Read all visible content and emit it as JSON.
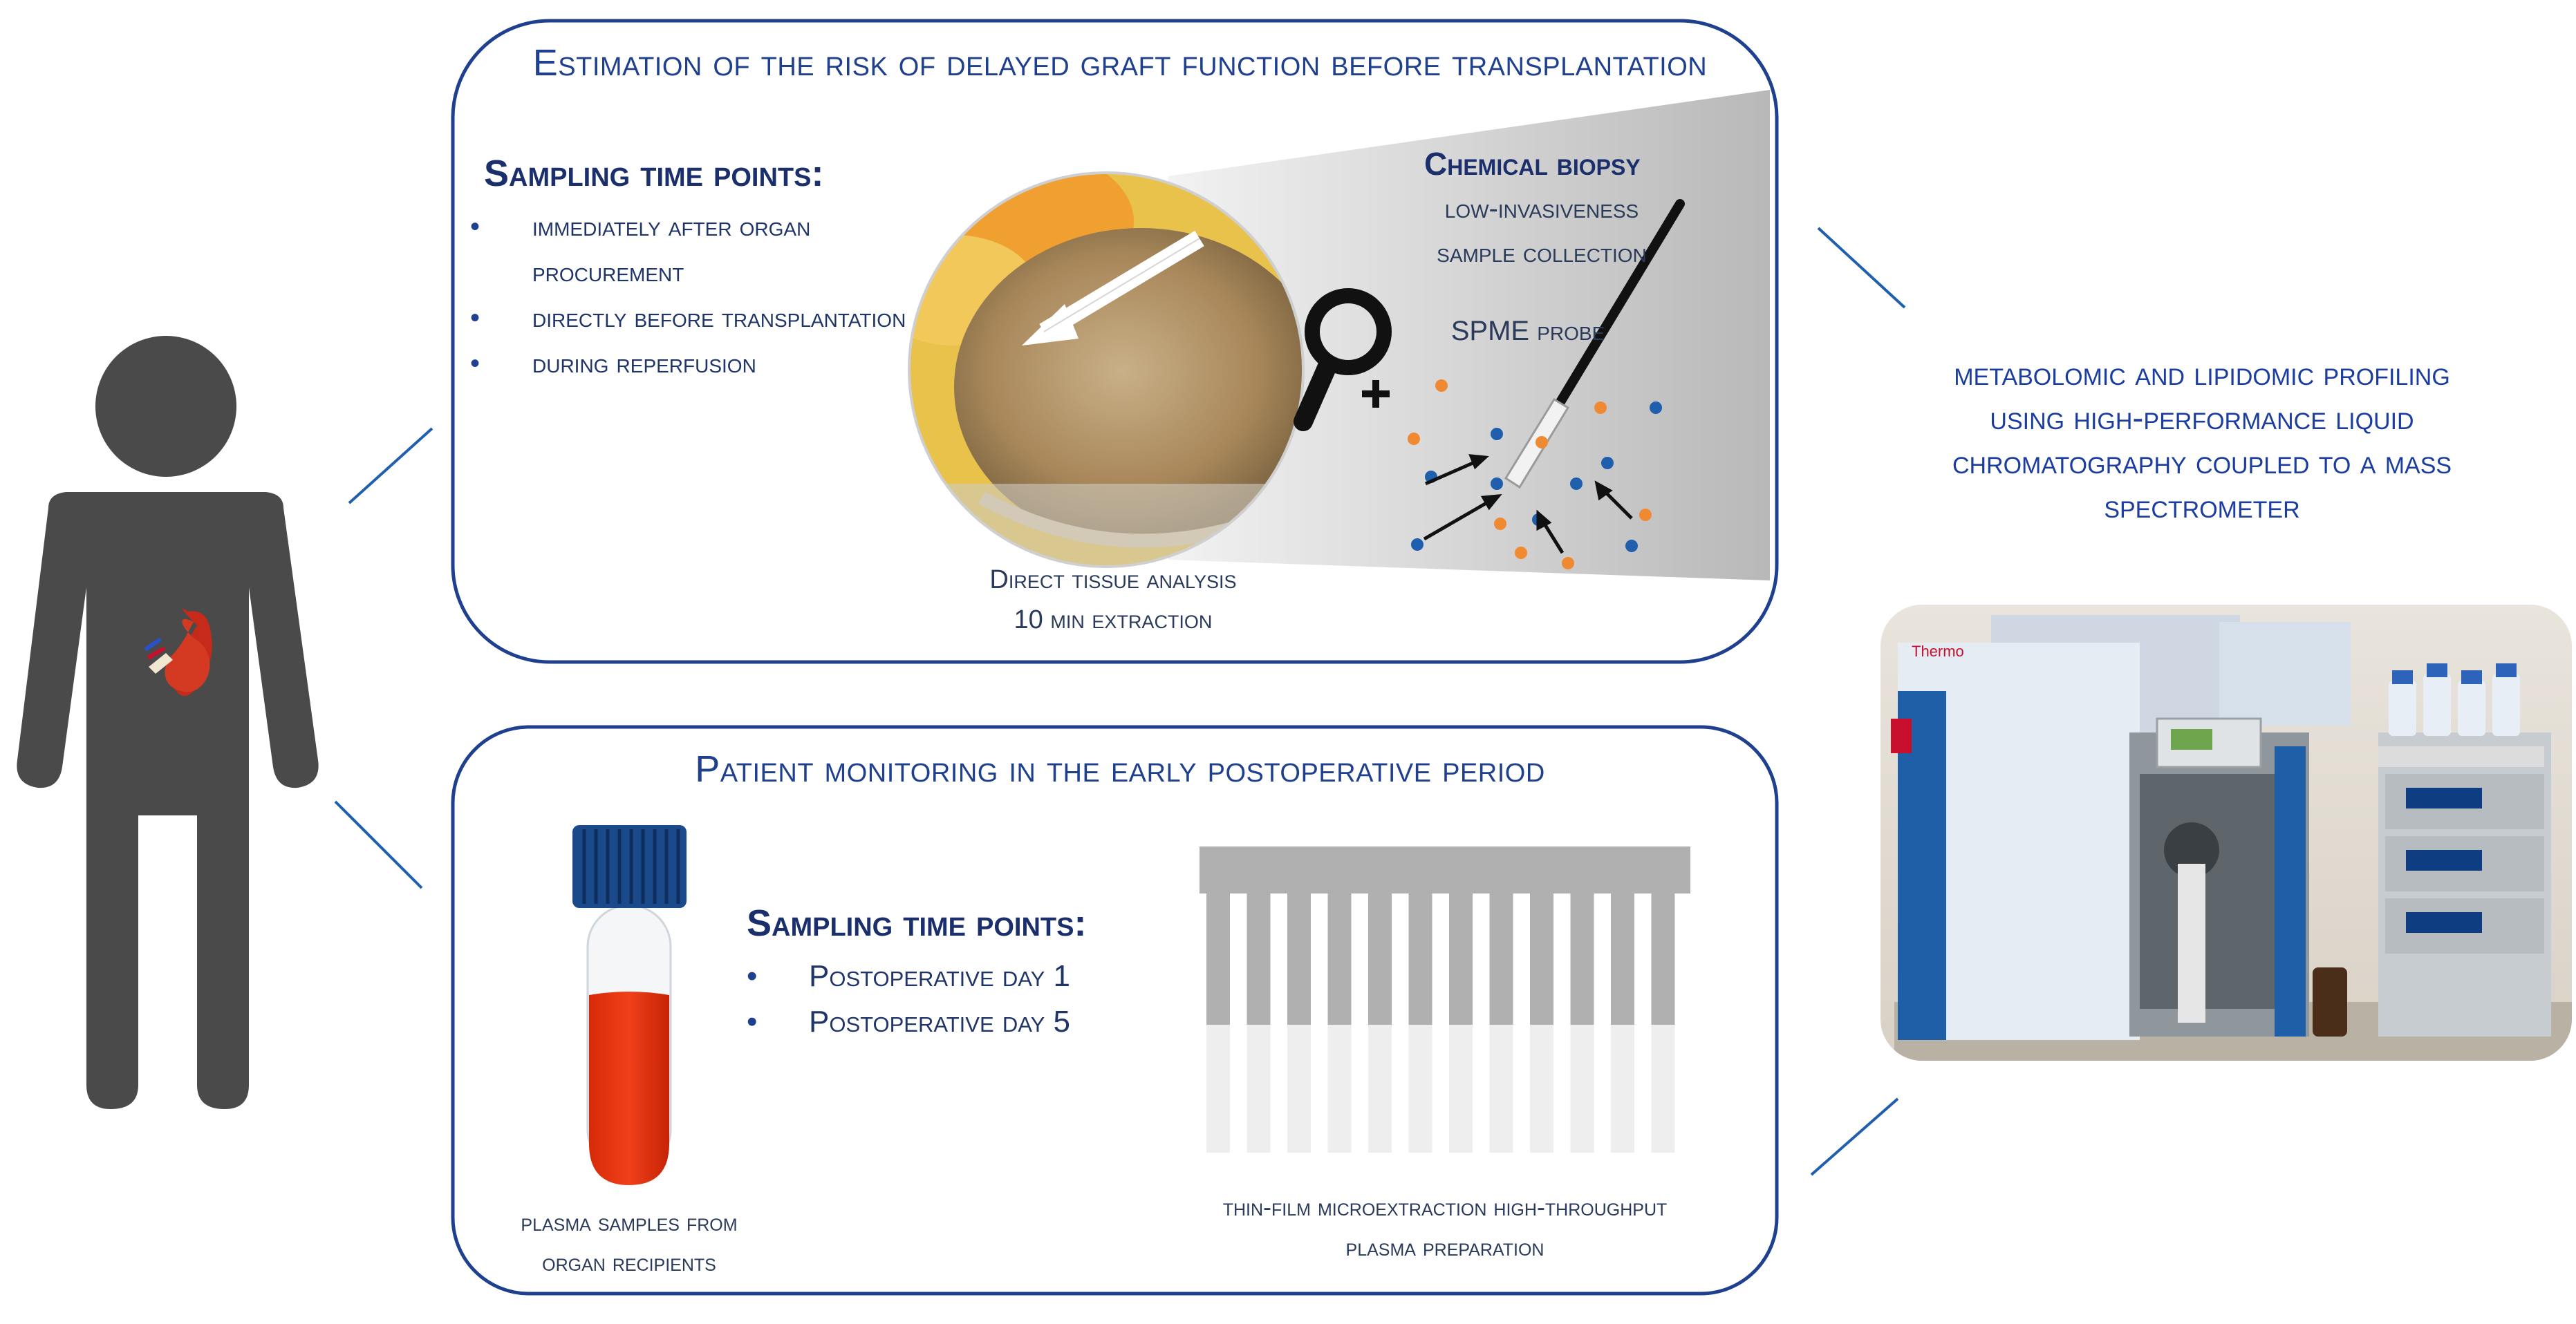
{
  "top_panel": {
    "title": "Estimation of the risk of delayed graft function before transplantation",
    "sampling_heading": "Sampling time points:",
    "sampling_items": [
      "immediately after organ procurement",
      "directly before transplantation",
      "during reperfusion"
    ],
    "chemical_biopsy_heading": "Chemical biopsy",
    "chemical_biopsy_line1": "low-invasiveness",
    "chemical_biopsy_line2": "sample collection",
    "probe_label": "SPME probe",
    "caption_line1": "Direct tissue analysis",
    "caption_line2": "10 min extraction"
  },
  "bottom_panel": {
    "title": "Patient monitoring in the early postoperative period",
    "sampling_heading": "Sampling time points:",
    "sampling_items": [
      "Postoperative day 1",
      "Postoperative day 5"
    ],
    "tube_caption_line1": "plasma samples from",
    "tube_caption_line2": "organ recipients",
    "tfme_caption_line1": "thin-film microextraction high-throughput",
    "tfme_caption_line2": "plasma preparation"
  },
  "right_panel": {
    "text_lines": [
      "metabolomic and lipidomic profiling",
      "using high-performance liquid",
      "chromatography coupled to a mass",
      "spectrometer"
    ],
    "instrument_brand": "Thermo"
  },
  "icons": {
    "person": "person-silhouette-icon",
    "kidney": "kidney-icon",
    "magnifier": "magnifier-plus-icon",
    "probe": "spme-probe-icon",
    "tube": "blood-tube-icon",
    "tfme": "thin-film-blade-array-icon",
    "instrument": "lc-ms-instrument-image"
  },
  "colors": {
    "frame": "#1f3f8f",
    "title_blue": "#1b3da0",
    "silhouette": "#4a4a4a",
    "blood": "#e8320f",
    "cap": "#1b4a8a",
    "analyte_blue": "#1f5fae",
    "analyte_orange": "#f08a32"
  }
}
